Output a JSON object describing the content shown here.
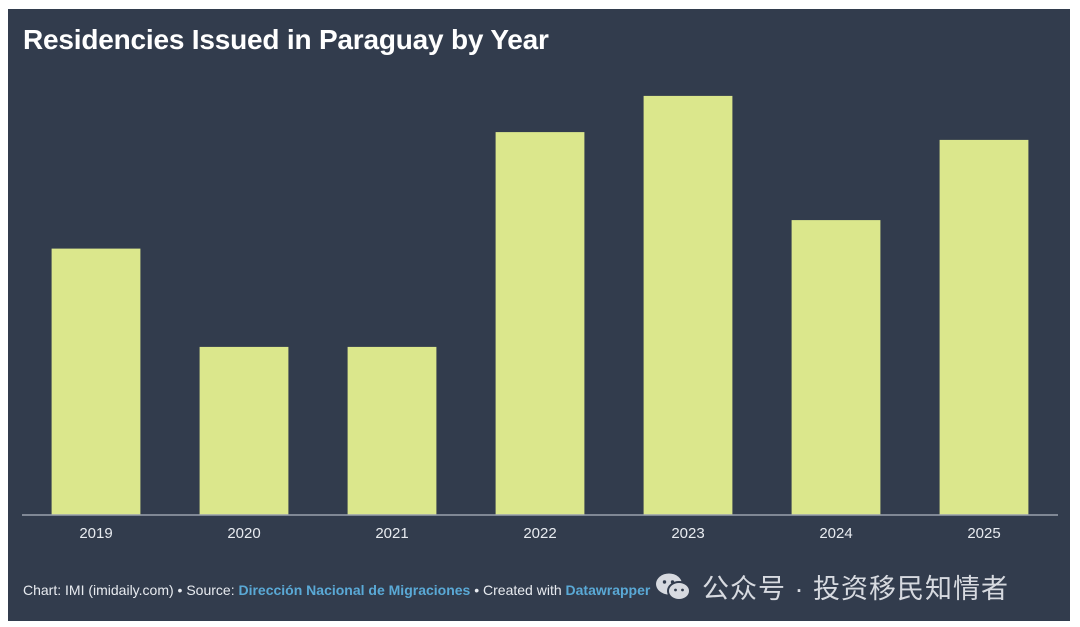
{
  "chart_data": {
    "type": "bar",
    "title": "Residencies Issued in Paraguay by Year",
    "categories": [
      "2019",
      "2020",
      "2021",
      "2022",
      "2023",
      "2024",
      "2025"
    ],
    "values": [
      10300,
      6500,
      6500,
      14800,
      16200,
      11400,
      14500
    ],
    "ylim": [
      0,
      16700
    ],
    "xlabel": "",
    "ylabel": "",
    "grid": false,
    "bar_color": "#dbe78c",
    "background_color": "#323c4d"
  },
  "footer": {
    "chart_label": "Chart: IMI (imidaily.com)",
    "separator": "•",
    "source_prefix": "Source:",
    "source_name": "Dirección Nacional de Migraciones",
    "created_prefix": "Created with",
    "created_tool": "Datawrapper"
  },
  "watermark": {
    "icon": "wechat-icon",
    "text": "公众号 · 投资移民知情者"
  }
}
